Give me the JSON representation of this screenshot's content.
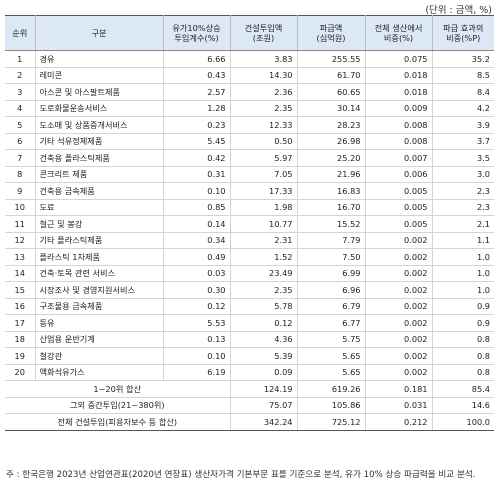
{
  "unit_label": "(단위 : 금액, %)",
  "headers": [
    "순위",
    "구분",
    "유가10%상승\n투입계수(%)",
    "건설투입액\n(조원)",
    "파급액\n(십억원)",
    "전체 생산에서\n비중(%)",
    "파급 효과의\n비중(%P)"
  ],
  "rows": [
    [
      "1",
      "경유",
      "6.66",
      "3.83",
      "255.55",
      "0.075",
      "35.2"
    ],
    [
      "2",
      "레미콘",
      "0.43",
      "14.30",
      "61.70",
      "0.018",
      "8.5"
    ],
    [
      "3",
      "아스콘 및 아스팔트제품",
      "2.57",
      "2.36",
      "60.65",
      "0.018",
      "8.4"
    ],
    [
      "4",
      "도로화물운송서비스",
      "1.28",
      "2.35",
      "30.14",
      "0.009",
      "4.2"
    ],
    [
      "5",
      "도소매 및 상품중개서비스",
      "0.23",
      "12.33",
      "28.23",
      "0.008",
      "3.9"
    ],
    [
      "6",
      "기타 석유정제제품",
      "5.45",
      "0.50",
      "26.98",
      "0.008",
      "3.7"
    ],
    [
      "7",
      "건축용 플라스틱제품",
      "0.42",
      "5.97",
      "25.20",
      "0.007",
      "3.5"
    ],
    [
      "8",
      "콘크리트 제품",
      "0.31",
      "7.05",
      "21.96",
      "0.006",
      "3.0"
    ],
    [
      "9",
      "건축용 금속제품",
      "0.10",
      "17.33",
      "16.83",
      "0.005",
      "2.3"
    ],
    [
      "10",
      "도료",
      "0.85",
      "1.98",
      "16.70",
      "0.005",
      "2.3"
    ],
    [
      "11",
      "철근 및 봉강",
      "0.14",
      "10.77",
      "15.52",
      "0.005",
      "2.1"
    ],
    [
      "12",
      "기타 플라스틱제품",
      "0.34",
      "2.31",
      "7.79",
      "0.002",
      "1.1"
    ],
    [
      "13",
      "플라스틱 1차제품",
      "0.49",
      "1.52",
      "7.50",
      "0.002",
      "1.0"
    ],
    [
      "14",
      "건축·토목 관련 서비스",
      "0.03",
      "23.49",
      "6.99",
      "0.002",
      "1.0"
    ],
    [
      "15",
      "시장조사 및 경영지원서비스",
      "0.30",
      "2.35",
      "6.96",
      "0.002",
      "1.0"
    ],
    [
      "16",
      "구조물용 금속제품",
      "0.12",
      "5.78",
      "6.79",
      "0.002",
      "0.9"
    ],
    [
      "17",
      "등유",
      "5.53",
      "0.12",
      "6.77",
      "0.002",
      "0.9"
    ],
    [
      "18",
      "산업용 운반기계",
      "0.13",
      "4.36",
      "5.75",
      "0.002",
      "0.8"
    ],
    [
      "19",
      "철강관",
      "0.10",
      "5.39",
      "5.65",
      "0.002",
      "0.8"
    ],
    [
      "20",
      "액화석유가스",
      "6.19",
      "0.09",
      "5.65",
      "0.002",
      "0.8"
    ]
  ],
  "summary": [
    [
      "1~20위 합산",
      "",
      "124.19",
      "619.26",
      "0.181",
      "85.4"
    ],
    [
      "그외 중간투입(21~380위)",
      "",
      "75.07",
      "105.86",
      "0.031",
      "14.6"
    ],
    [
      "전체 건설투입(피용자보수 등 합산)",
      "",
      "342.24",
      "725.12",
      "0.212",
      "100.0"
    ]
  ],
  "footnote": "주 : 한국은행 2023년 산업연관표(2020년 연장표) 생산자가격 기본부문 표를 기준으로 분석, 유가 10% 상승 파급력을 비교 분석."
}
